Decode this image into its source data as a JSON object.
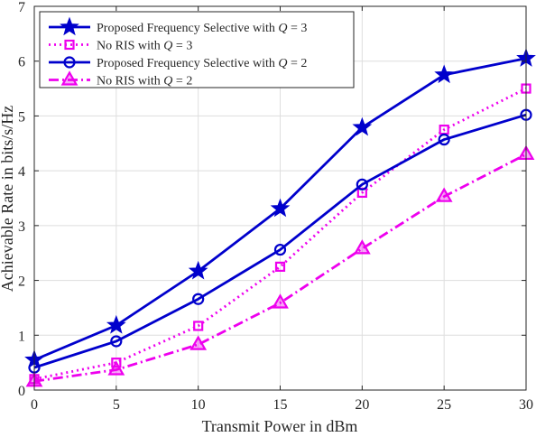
{
  "chart_data": {
    "type": "line",
    "xlabel": "Transmit Power in dBm",
    "ylabel": "Achievable Rate in bits/s/Hz",
    "xlim": [
      0,
      30
    ],
    "ylim": [
      0,
      7
    ],
    "xticks": [
      0,
      5,
      10,
      15,
      20,
      25,
      30
    ],
    "yticks": [
      0,
      1,
      2,
      3,
      4,
      5,
      6,
      7
    ],
    "grid": true,
    "legend_position": "top-left",
    "x": [
      0,
      5,
      10,
      15,
      20,
      25,
      30
    ],
    "series": [
      {
        "name": "Proposed Frequency Selective with Q = 3",
        "legend_prefix": "Proposed Frequency Selective with ",
        "legend_var": "Q",
        "legend_suffix": " = 3",
        "values": [
          0.55,
          1.18,
          2.17,
          3.31,
          4.79,
          5.75,
          6.05
        ],
        "color": "#0000cc",
        "dash": "solid",
        "marker": "star"
      },
      {
        "name": "No RIS with Q = 3",
        "legend_prefix": "No RIS with ",
        "legend_var": "Q",
        "legend_suffix": " = 3",
        "values": [
          0.2,
          0.5,
          1.17,
          2.25,
          3.6,
          4.75,
          5.5
        ],
        "color": "#ee00ee",
        "dash": "dotted",
        "marker": "square"
      },
      {
        "name": "Proposed Frequency Selective with Q = 2",
        "legend_prefix": "Proposed Frequency Selective with ",
        "legend_var": "Q",
        "legend_suffix": " = 2",
        "values": [
          0.41,
          0.89,
          1.66,
          2.56,
          3.75,
          4.57,
          5.02
        ],
        "color": "#0000cc",
        "dash": "solid",
        "marker": "circle"
      },
      {
        "name": "No RIS with Q = 2",
        "legend_prefix": "No RIS with ",
        "legend_var": "Q",
        "legend_suffix": " = 2",
        "values": [
          0.16,
          0.37,
          0.83,
          1.59,
          2.58,
          3.53,
          4.3
        ],
        "color": "#ee00ee",
        "dash": "dashdot",
        "marker": "triangle"
      }
    ]
  }
}
